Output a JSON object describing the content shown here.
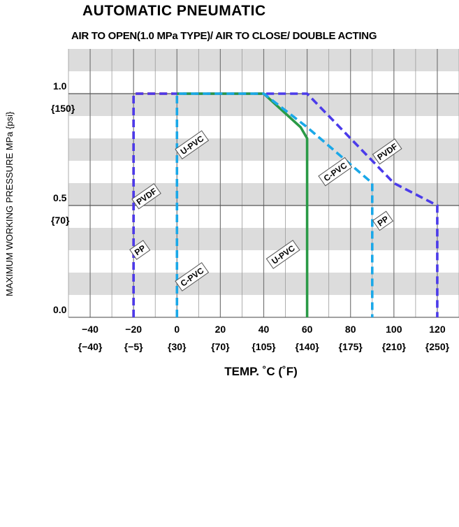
{
  "chart_data": {
    "type": "line",
    "title": "AUTOMATIC  PNEUMATIC",
    "subtitle": "AIR TO OPEN(1.0 MPa TYPE)/ AIR TO CLOSE/ DOUBLE ACTING",
    "xlabel": "TEMP. ˚C (˚F)",
    "ylabel": "MAXIMUM WORKING PRESSURE   MPa {psi}",
    "xlim": [
      -50,
      130
    ],
    "ylim": [
      0,
      1.2
    ],
    "grid": true,
    "x_ticks": [
      {
        "value": -40,
        "label": "−40",
        "sub": "{−40}"
      },
      {
        "value": -20,
        "label": "−20",
        "sub": "{−5}"
      },
      {
        "value": 0,
        "label": "0",
        "sub": "{30}"
      },
      {
        "value": 20,
        "label": "20",
        "sub": "{70}"
      },
      {
        "value": 40,
        "label": "40",
        "sub": "{105}"
      },
      {
        "value": 60,
        "label": "60",
        "sub": "{140}"
      },
      {
        "value": 80,
        "label": "80",
        "sub": "{175}"
      },
      {
        "value": 100,
        "label": "100",
        "sub": "{210}"
      },
      {
        "value": 120,
        "label": "120",
        "sub": "{250}"
      }
    ],
    "y_ticks": [
      {
        "value": 1.0,
        "label": "1.0",
        "sub": "{150}"
      },
      {
        "value": 0.5,
        "label": "0.5",
        "sub": "{70}"
      },
      {
        "value": 0.0,
        "label": "0.0",
        "sub": ""
      }
    ],
    "series": [
      {
        "name": "PP",
        "color": "#e8202a",
        "style": "dashed",
        "points": [
          [
            -20,
            0
          ],
          [
            -20,
            1.0
          ],
          [
            -2,
            1.0
          ]
        ],
        "label_at": [
          -17,
          0.3
        ]
      },
      {
        "name": "PVDF",
        "color": "#4b3bea",
        "style": "dashed",
        "points": [
          [
            -20,
            0
          ],
          [
            -20,
            1.0
          ],
          [
            40,
            1.0
          ],
          [
            60,
            1.0
          ],
          [
            90,
            0.7
          ],
          [
            100,
            0.6
          ],
          [
            120,
            0.5
          ],
          [
            120,
            0
          ]
        ],
        "label_at": [
          -14,
          0.54
        ]
      },
      {
        "name": "U-PVC",
        "color": "#2a9a46",
        "style": "solid",
        "points": [
          [
            0,
            1.0
          ],
          [
            40,
            1.0
          ],
          [
            57,
            0.85
          ],
          [
            60,
            0.8
          ],
          [
            60,
            0
          ]
        ],
        "label_at": [
          7,
          0.77
        ]
      },
      {
        "name": "C-PVC",
        "color": "#1aa8e8",
        "style": "dashed",
        "points": [
          [
            0,
            0
          ],
          [
            0,
            1.0
          ],
          [
            40,
            1.0
          ],
          [
            60,
            0.85
          ],
          [
            90,
            0.6
          ],
          [
            90,
            0
          ]
        ],
        "label_at": [
          7,
          0.18
        ]
      },
      {
        "name": "C-PVC",
        "color": "#1aa8e8",
        "style": "none",
        "points": [],
        "label_at": [
          73,
          0.65
        ]
      },
      {
        "name": "PVDF",
        "color": "#4b3bea",
        "style": "none",
        "points": [],
        "label_at": [
          97,
          0.74
        ]
      },
      {
        "name": "U-PVC",
        "color": "#2a9a46",
        "style": "none",
        "points": [],
        "label_at": [
          49,
          0.28
        ]
      },
      {
        "name": "PP",
        "color": "#e8202a",
        "style": "none",
        "points": [],
        "label_at": [
          95,
          0.43
        ]
      }
    ]
  }
}
